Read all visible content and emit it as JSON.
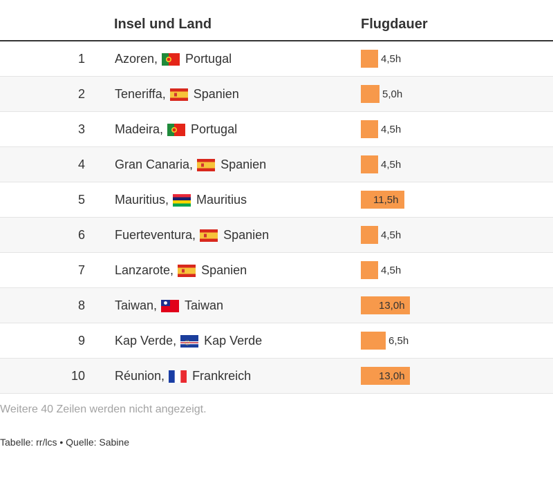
{
  "table": {
    "headers": {
      "name": "Insel und Land",
      "duration": "Flugdauer"
    },
    "rows": [
      {
        "rank": "1",
        "island": "Azoren,",
        "country": "Portugal",
        "flag": "flag-portugal",
        "duration": "4,5h"
      },
      {
        "rank": "2",
        "island": "Teneriffa,",
        "country": "Spanien",
        "flag": "flag-spain",
        "duration": "5,0h"
      },
      {
        "rank": "3",
        "island": "Madeira,",
        "country": "Portugal",
        "flag": "flag-portugal",
        "duration": "4,5h"
      },
      {
        "rank": "4",
        "island": "Gran Canaria,",
        "country": "Spanien",
        "flag": "flag-spain",
        "duration": "4,5h"
      },
      {
        "rank": "5",
        "island": "Mauritius,",
        "country": "Mauritius",
        "flag": "flag-mauritius",
        "duration": "11,5h"
      },
      {
        "rank": "6",
        "island": "Fuerteventura,",
        "country": "Spanien",
        "flag": "flag-spain",
        "duration": "4,5h"
      },
      {
        "rank": "7",
        "island": "Lanzarote,",
        "country": "Spanien",
        "flag": "flag-spain",
        "duration": "4,5h"
      },
      {
        "rank": "8",
        "island": "Taiwan,",
        "country": "Taiwan",
        "flag": "flag-taiwan",
        "duration": "13,0h"
      },
      {
        "rank": "9",
        "island": "Kap Verde,",
        "country": "Kap Verde",
        "flag": "flag-cape-verde",
        "duration": "6,5h"
      },
      {
        "rank": "10",
        "island": "Réunion,",
        "country": "Frankreich",
        "flag": "flag-france",
        "duration": "13,0h"
      }
    ],
    "note": "Weitere 40 Zeilen werden nicht angezeigt.",
    "footer": "Tabelle: rr/lcs • Quelle: Sabine"
  },
  "chart_data": {
    "type": "table",
    "columns": [
      "",
      "Insel und Land",
      "Flugdauer"
    ],
    "categories": [
      "Azoren",
      "Teneriffa",
      "Madeira",
      "Gran Canaria",
      "Mauritius",
      "Fuerteventura",
      "Lanzarote",
      "Taiwan",
      "Kap Verde",
      "Réunion"
    ],
    "values": [
      4.5,
      5.0,
      4.5,
      4.5,
      11.5,
      4.5,
      4.5,
      13.0,
      6.5,
      13.0
    ],
    "bar_color": "#f7994b"
  },
  "colors": {
    "bar": "#f7994b",
    "stripe": "#f7f7f7",
    "text": "#333333",
    "muted": "#a3a3a3"
  }
}
